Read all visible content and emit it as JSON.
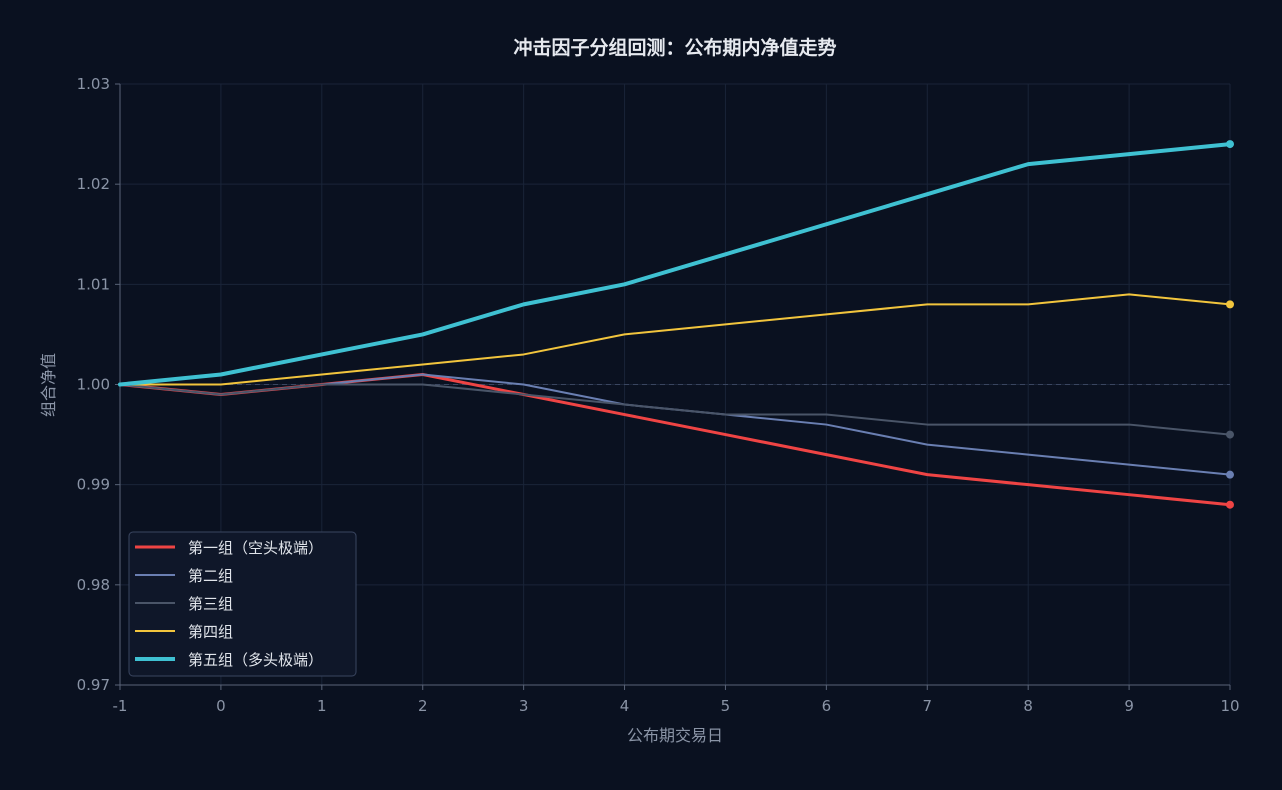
{
  "chart_data": {
    "type": "line",
    "title": "冲击因子分组回测：公布期内净值走势",
    "xlabel": "公布期交易日",
    "ylabel": "组合净值",
    "x": [
      -1,
      0,
      1,
      2,
      3,
      4,
      5,
      6,
      7,
      8,
      9,
      10
    ],
    "xlim": [
      -1,
      10
    ],
    "ylim": [
      0.97,
      1.03
    ],
    "xticks": [
      "-1",
      "0",
      "1",
      "2",
      "3",
      "4",
      "5",
      "6",
      "7",
      "8",
      "9",
      "10"
    ],
    "yticks": [
      "0.97",
      "0.98",
      "0.99",
      "1.00",
      "1.01",
      "1.02",
      "1.03"
    ],
    "grid": true,
    "reference_line": 1.0,
    "legend_position": "lower-left",
    "series": [
      {
        "name": "第一组（空头极端）",
        "color": "#ef4444",
        "width": 3,
        "values": [
          1.0,
          0.999,
          1.0,
          1.001,
          0.999,
          0.997,
          0.995,
          0.993,
          0.991,
          0.99,
          0.989,
          0.988
        ]
      },
      {
        "name": "第二组",
        "color": "#6a7fb2",
        "width": 2,
        "values": [
          1.0,
          0.999,
          1.0,
          1.001,
          1.0,
          0.998,
          0.997,
          0.996,
          0.994,
          0.993,
          0.992,
          0.991
        ]
      },
      {
        "name": "第三组",
        "color": "#4a5568",
        "width": 2,
        "values": [
          1.0,
          0.999,
          1.0,
          1.0,
          0.999,
          0.998,
          0.997,
          0.997,
          0.996,
          0.996,
          0.996,
          0.995
        ]
      },
      {
        "name": "第四组",
        "color": "#f2c53d",
        "width": 2,
        "values": [
          1.0,
          1.0,
          1.001,
          1.002,
          1.003,
          1.005,
          1.006,
          1.007,
          1.008,
          1.008,
          1.009,
          1.008
        ]
      },
      {
        "name": "第五组（多头极端）",
        "color": "#3fc1d2",
        "width": 4,
        "values": [
          1.0,
          1.001,
          1.003,
          1.005,
          1.008,
          1.01,
          1.013,
          1.016,
          1.019,
          1.022,
          1.023,
          1.024
        ]
      }
    ]
  }
}
